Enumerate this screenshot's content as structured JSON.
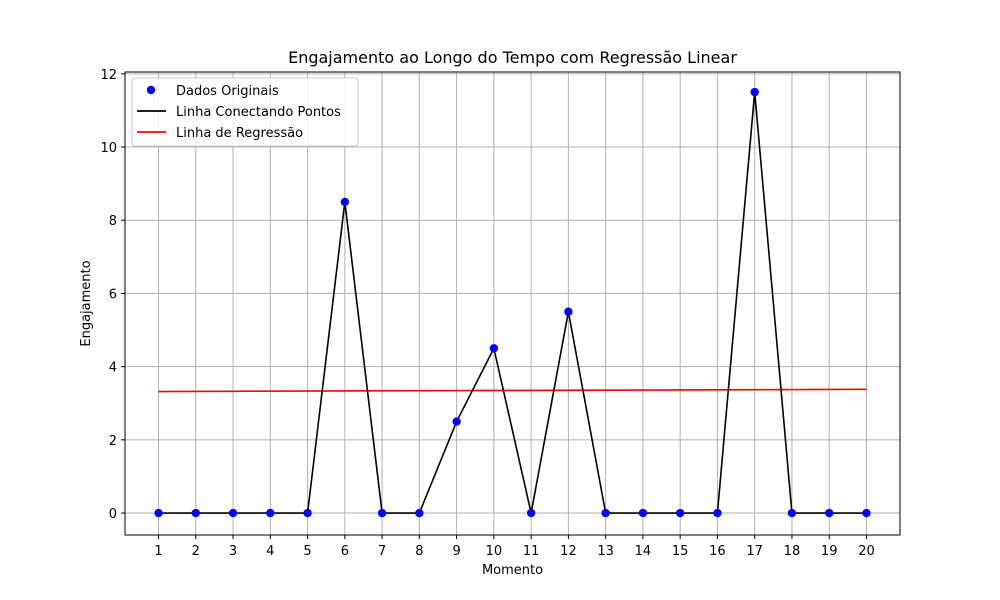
{
  "chart_data": {
    "type": "line",
    "title": "Engajamento ao Longo do Tempo com Regressão Linear",
    "xlabel": "Momento",
    "ylabel": "Engajamento",
    "xlim": [
      0.1,
      20.9
    ],
    "ylim": [
      -0.6,
      12.05
    ],
    "x_ticks": [
      1,
      2,
      3,
      4,
      5,
      6,
      7,
      8,
      9,
      10,
      11,
      12,
      13,
      14,
      15,
      16,
      17,
      18,
      19,
      20
    ],
    "y_ticks": [
      0,
      2,
      4,
      6,
      8,
      10,
      12
    ],
    "grid": true,
    "legend_position": "top-left",
    "x": [
      1,
      2,
      3,
      4,
      5,
      6,
      7,
      8,
      9,
      10,
      11,
      12,
      13,
      14,
      15,
      16,
      17,
      18,
      19,
      20
    ],
    "series": [
      {
        "name": "Dados Originais",
        "kind": "scatter",
        "color": "#0000ff",
        "values": [
          0,
          0,
          0,
          0,
          0,
          8.5,
          0,
          0,
          2.5,
          4.5,
          0,
          5.5,
          0,
          0,
          0,
          0,
          11.5,
          0,
          0,
          0
        ]
      },
      {
        "name": "Linha Conectando Pontos",
        "kind": "line",
        "color": "#000000",
        "values": [
          0,
          0,
          0,
          0,
          0,
          8.5,
          0,
          0,
          2.5,
          4.5,
          0,
          5.5,
          0,
          0,
          0,
          0,
          11.5,
          0,
          0,
          0
        ]
      },
      {
        "name": "Linha de Regressão",
        "kind": "line",
        "color": "#ff0000",
        "x": [
          1,
          20
        ],
        "values": [
          3.32,
          3.38
        ]
      }
    ]
  }
}
